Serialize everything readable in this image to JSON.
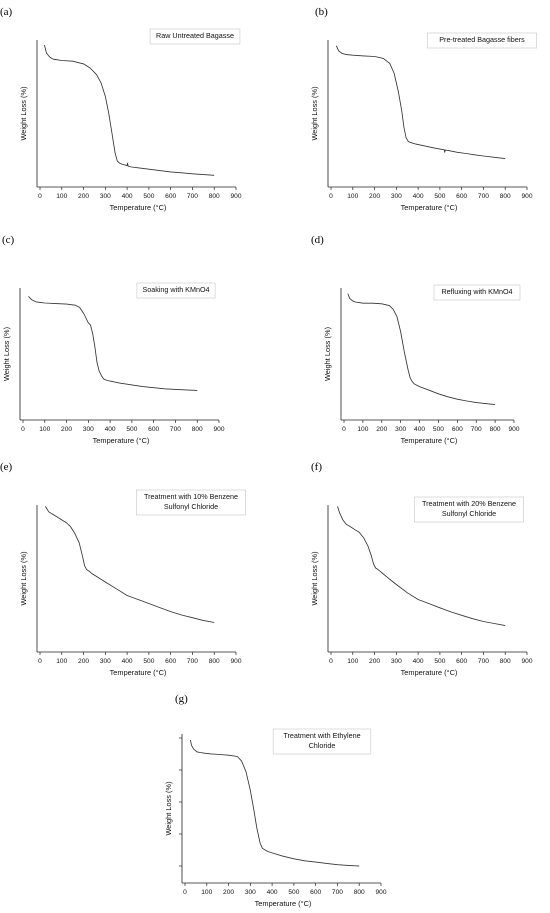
{
  "chart_data": [
    {
      "panel": "(a)",
      "type": "line",
      "title": [
        "Raw Untreated Bagasse"
      ],
      "xlabel": "Temperature (°C)",
      "ylabel": "Weight Loss (%)",
      "xticks": [
        "0",
        "100",
        "200",
        "300",
        "400",
        "500",
        "600",
        "700",
        "800",
        "900"
      ],
      "xlim": [
        0,
        900
      ],
      "ylim": [
        0,
        100
      ],
      "series": [
        {
          "x": [
            20,
            30,
            45,
            60,
            80,
            100,
            150,
            200,
            230,
            260,
            280,
            300,
            315,
            330,
            345,
            355,
            365,
            380,
            395,
            400,
            402,
            405,
            410,
            420,
            450,
            500,
            550,
            600,
            650,
            700,
            750,
            800
          ],
          "values": [
            100,
            94,
            91,
            89.5,
            89,
            88.5,
            88,
            86,
            83,
            78,
            72,
            62,
            50,
            35,
            20,
            14,
            12.5,
            11.5,
            11,
            10.5,
            12.5,
            10.3,
            10,
            9.6,
            9,
            8,
            7,
            6,
            5.3,
            4.6,
            4,
            3.5
          ]
        }
      ]
    },
    {
      "panel": "(b)",
      "type": "line",
      "title": [
        "Pre-treated Bagasse fibers"
      ],
      "xlabel": "Temperature (°C)",
      "ylabel": "Weight Loss (%)",
      "xticks": [
        "0",
        "100",
        "200",
        "300",
        "400",
        "500",
        "600",
        "700",
        "800",
        "900"
      ],
      "xlim": [
        0,
        900
      ],
      "ylim": [
        0,
        100
      ],
      "series": [
        {
          "x": [
            25,
            35,
            50,
            70,
            100,
            150,
            200,
            240,
            270,
            290,
            310,
            325,
            335,
            345,
            355,
            362,
            370,
            390,
            430,
            470,
            510,
            520,
            522,
            525,
            540,
            580,
            620,
            660,
            700,
            750,
            800
          ],
          "values": [
            97,
            93,
            91,
            90,
            89.5,
            89,
            88.5,
            87,
            83,
            75,
            60,
            45,
            32,
            24,
            21,
            20.5,
            20,
            19,
            17.5,
            16,
            14.8,
            14.5,
            12.5,
            14.3,
            13.8,
            12.5,
            11.5,
            10.5,
            9.5,
            8.5,
            7.5
          ]
        }
      ]
    },
    {
      "panel": "(c)",
      "type": "line",
      "title": [
        "Soaking with KMnO4"
      ],
      "xlabel": "Temperature (°C)",
      "ylabel": "Weight Loss (%)",
      "xticks": [
        "0",
        "100",
        "200",
        "300",
        "400",
        "500",
        "600",
        "700",
        "800",
        "900"
      ],
      "xlim": [
        0,
        900
      ],
      "ylim": [
        0,
        100
      ],
      "series": [
        {
          "x": [
            25,
            40,
            60,
            80,
            100,
            150,
            200,
            240,
            260,
            280,
            300,
            310,
            320,
            330,
            340,
            350,
            360,
            370,
            380,
            400,
            450,
            500,
            550,
            600,
            650,
            700,
            750,
            800
          ],
          "values": [
            96,
            93,
            91,
            90.5,
            90,
            89.5,
            89,
            88,
            86,
            80,
            72,
            70,
            62,
            50,
            36,
            28,
            24,
            21,
            20,
            19,
            17,
            15.5,
            14,
            13,
            12,
            11.5,
            11,
            10.5
          ]
        }
      ]
    },
    {
      "panel": "(d)",
      "type": "line",
      "title": [
        "Refluxing with KMnO4"
      ],
      "xlabel": "Temperature (°C)",
      "ylabel": "Weight Loss (%)",
      "xticks": [
        "0",
        "100",
        "200",
        "300",
        "400",
        "500",
        "600",
        "700",
        "800",
        "900"
      ],
      "xlim": [
        0,
        900
      ],
      "ylim": [
        0,
        100
      ],
      "series": [
        {
          "x": [
            20,
            30,
            45,
            60,
            80,
            100,
            150,
            200,
            240,
            260,
            280,
            300,
            320,
            340,
            350,
            360,
            370,
            380,
            400,
            450,
            500,
            550,
            600,
            650,
            700,
            750,
            800
          ],
          "values": [
            97,
            93,
            91,
            90,
            89.5,
            89,
            89,
            88.5,
            87,
            84,
            78,
            65,
            48,
            33,
            27,
            24,
            22,
            21,
            19.5,
            16.5,
            13.5,
            11,
            9,
            7.5,
            6.2,
            5.3,
            4.5
          ]
        }
      ]
    },
    {
      "panel": "(e)",
      "type": "line",
      "title": [
        "Treatment with 10% Benzene",
        "Sulfonyl Chloride"
      ],
      "xlabel": "Temperature (°C)",
      "ylabel": "Weight Loss (%)",
      "xticks": [
        "0",
        "100",
        "200",
        "300",
        "400",
        "500",
        "600",
        "700",
        "800",
        "900"
      ],
      "xlim": [
        0,
        900
      ],
      "ylim": [
        0,
        100
      ],
      "series": [
        {
          "x": [
            25,
            40,
            60,
            80,
            100,
            120,
            140,
            160,
            180,
            195,
            205,
            215,
            225,
            240,
            260,
            300,
            350,
            400,
            450,
            500,
            550,
            600,
            650,
            700,
            750,
            800
          ],
          "values": [
            99,
            95,
            93,
            91,
            89,
            87,
            84,
            79,
            72,
            62,
            55,
            52,
            51,
            49,
            47,
            43,
            38,
            33,
            30,
            27,
            24,
            21,
            18.5,
            16.5,
            14.5,
            13
          ]
        }
      ]
    },
    {
      "panel": "(f)",
      "type": "line",
      "title": [
        "Treatment with 20% Benzene",
        "Sulfonyl Chloride"
      ],
      "xlabel": "Temperature (°C)",
      "ylabel": "Weight Loss (%)",
      "xticks": [
        "0",
        "100",
        "200",
        "300",
        "400",
        "500",
        "600",
        "700",
        "800",
        "900"
      ],
      "xlim": [
        0,
        900
      ],
      "ylim": [
        0,
        100
      ],
      "series": [
        {
          "x": [
            30,
            40,
            55,
            70,
            90,
            110,
            130,
            150,
            170,
            185,
            195,
            205,
            215,
            230,
            260,
            300,
            350,
            400,
            450,
            500,
            550,
            600,
            650,
            700,
            750,
            800
          ],
          "values": [
            99,
            94,
            89,
            86,
            84,
            82,
            80,
            76,
            70,
            63,
            57,
            54,
            53,
            51,
            47,
            42,
            36,
            31,
            28,
            25,
            22,
            19.5,
            17,
            15,
            13.5,
            12
          ]
        }
      ]
    },
    {
      "panel": "(g)",
      "type": "line",
      "title": [
        "Treatment with Ethylene",
        "Chloride"
      ],
      "xlabel": "Temperature (°C)",
      "ylabel": "Weight Loss (%)",
      "xticks": [
        "0",
        "100",
        "200",
        "300",
        "400",
        "500",
        "600",
        "700",
        "800",
        "900"
      ],
      "xlim": [
        0,
        900
      ],
      "ylim": [
        0,
        100
      ],
      "series": [
        {
          "x": [
            25,
            30,
            40,
            55,
            70,
            90,
            120,
            160,
            200,
            240,
            260,
            280,
            300,
            315,
            330,
            345,
            355,
            365,
            380,
            400,
            450,
            500,
            550,
            600,
            650,
            700,
            750,
            800
          ],
          "values": [
            100,
            96,
            93,
            91,
            90.5,
            90,
            89.5,
            89,
            88.5,
            87.5,
            84,
            76,
            62,
            48,
            33,
            22,
            18,
            17,
            15.5,
            14.5,
            12,
            10,
            8.5,
            7.5,
            6.5,
            5.5,
            5,
            4.5
          ]
        }
      ]
    }
  ]
}
